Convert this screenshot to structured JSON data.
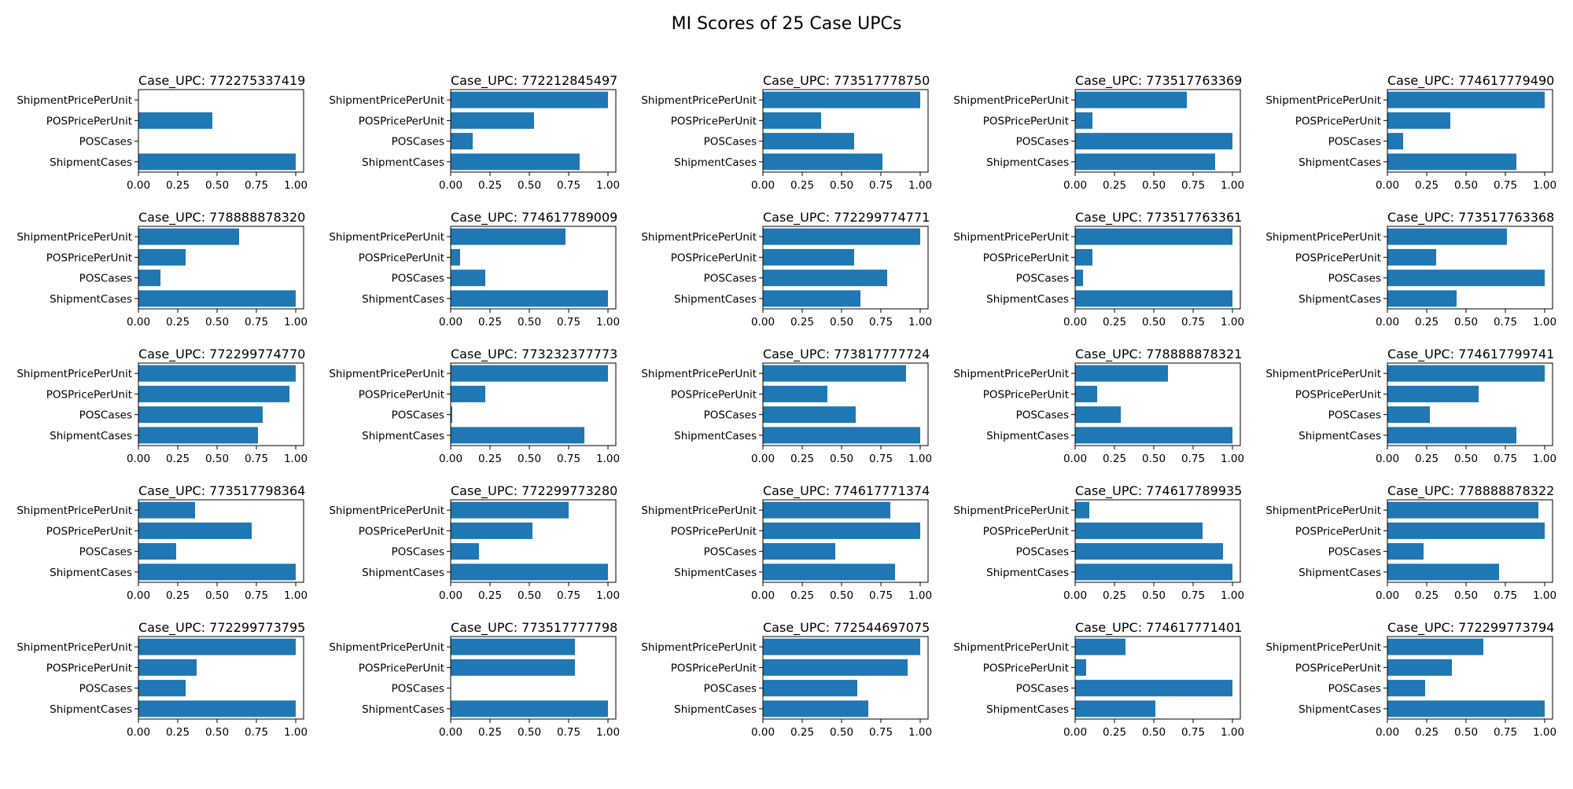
{
  "figure": {
    "title": "MI Scores of 25 Case UPCs"
  },
  "chart_data": {
    "type": "bar",
    "orientation": "horizontal",
    "grid": false,
    "xlim": [
      0,
      1.05
    ],
    "xticks": [
      "0.00",
      "0.25",
      "0.50",
      "0.75",
      "1.00"
    ],
    "xtick_values": [
      0,
      0.25,
      0.5,
      0.75,
      1.0
    ],
    "categories": [
      "ShipmentCases",
      "POSCases",
      "POSPricePerUnit",
      "ShipmentPricePerUnit"
    ],
    "bar_color": "#1f77b4",
    "panels": [
      {
        "title": "Case_UPC: 772275337419",
        "values": [
          1.0,
          0.0,
          0.47,
          0.0
        ]
      },
      {
        "title": "Case_UPC: 772212845497",
        "values": [
          0.82,
          0.14,
          0.53,
          1.0
        ]
      },
      {
        "title": "Case_UPC: 773517778750",
        "values": [
          0.76,
          0.58,
          0.37,
          1.0
        ]
      },
      {
        "title": "Case_UPC: 773517763369",
        "values": [
          0.89,
          1.0,
          0.11,
          0.71
        ]
      },
      {
        "title": "Case_UPC: 774617779490",
        "values": [
          0.82,
          0.1,
          0.4,
          1.0
        ]
      },
      {
        "title": "Case_UPC: 778888878320",
        "values": [
          1.0,
          0.14,
          0.3,
          0.64
        ]
      },
      {
        "title": "Case_UPC: 774617789009",
        "values": [
          1.0,
          0.22,
          0.06,
          0.73
        ]
      },
      {
        "title": "Case_UPC: 772299774771",
        "values": [
          0.62,
          0.79,
          0.58,
          1.0
        ]
      },
      {
        "title": "Case_UPC: 773517763361",
        "values": [
          1.0,
          0.05,
          0.11,
          1.0
        ]
      },
      {
        "title": "Case_UPC: 773517763368",
        "values": [
          0.44,
          1.0,
          0.31,
          0.76
        ]
      },
      {
        "title": "Case_UPC: 772299774770",
        "values": [
          0.76,
          0.79,
          0.96,
          1.0
        ]
      },
      {
        "title": "Case_UPC: 773232377773",
        "values": [
          0.85,
          0.01,
          0.22,
          1.0
        ]
      },
      {
        "title": "Case_UPC: 773817777724",
        "values": [
          1.0,
          0.59,
          0.41,
          0.91
        ]
      },
      {
        "title": "Case_UPC: 778888878321",
        "values": [
          1.0,
          0.29,
          0.14,
          0.59
        ]
      },
      {
        "title": "Case_UPC: 774617799741",
        "values": [
          0.82,
          0.27,
          0.58,
          1.0
        ]
      },
      {
        "title": "Case_UPC: 773517798364",
        "values": [
          1.0,
          0.24,
          0.72,
          0.36
        ]
      },
      {
        "title": "Case_UPC: 772299773280",
        "values": [
          1.0,
          0.18,
          0.52,
          0.75
        ]
      },
      {
        "title": "Case_UPC: 774617771374",
        "values": [
          0.84,
          0.46,
          1.0,
          0.81
        ]
      },
      {
        "title": "Case_UPC: 774617789935",
        "values": [
          1.0,
          0.94,
          0.81,
          0.09
        ]
      },
      {
        "title": "Case_UPC: 778888878322",
        "values": [
          0.71,
          0.23,
          1.0,
          0.96
        ]
      },
      {
        "title": "Case_UPC: 772299773795",
        "values": [
          1.0,
          0.3,
          0.37,
          1.0
        ]
      },
      {
        "title": "Case_UPC: 773517777798",
        "values": [
          1.0,
          0.0,
          0.79,
          0.79
        ]
      },
      {
        "title": "Case_UPC: 772544697075",
        "values": [
          0.67,
          0.6,
          0.92,
          1.0
        ]
      },
      {
        "title": "Case_UPC: 774617771401",
        "values": [
          0.51,
          1.0,
          0.07,
          0.32
        ]
      },
      {
        "title": "Case_UPC: 772299773794",
        "values": [
          1.0,
          0.24,
          0.41,
          0.61
        ]
      }
    ]
  }
}
